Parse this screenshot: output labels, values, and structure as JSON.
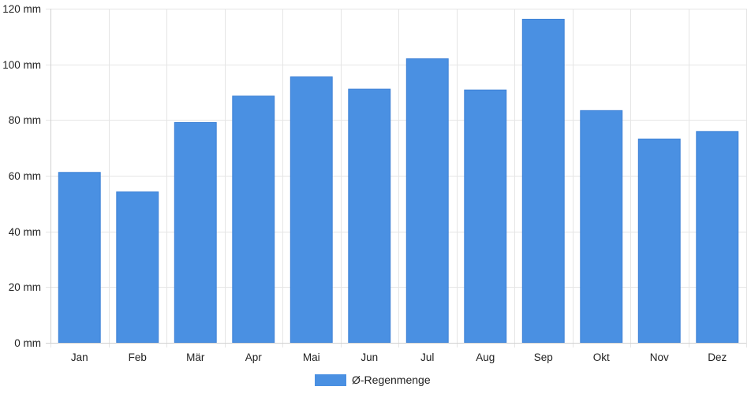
{
  "chart_data": {
    "type": "bar",
    "title": "",
    "xlabel": "",
    "ylabel": "",
    "unit": "mm",
    "categories": [
      "Jan",
      "Feb",
      "Mär",
      "Apr",
      "Mai",
      "Jun",
      "Jul",
      "Aug",
      "Sep",
      "Okt",
      "Nov",
      "Dez"
    ],
    "series": [
      {
        "name": "Ø-Regenmenge",
        "color": "#4a90e2",
        "values": [
          61.2,
          54.2,
          79.1,
          88.6,
          95.5,
          91.1,
          102,
          90.8,
          116.2,
          83.4,
          73.2,
          75.9
        ]
      }
    ],
    "ylim": [
      0,
      120
    ],
    "yticks": [
      {
        "value": 0,
        "label": "0 mm"
      },
      {
        "value": 20,
        "label": "20 mm"
      },
      {
        "value": 40,
        "label": "40 mm"
      },
      {
        "value": 60,
        "label": "60 mm"
      },
      {
        "value": 80,
        "label": "80 mm"
      },
      {
        "value": 100,
        "label": "100 mm"
      },
      {
        "value": 120,
        "label": "120 mm"
      }
    ],
    "grid": true,
    "legend_position": "bottom-center",
    "colors": {
      "grid": "#e5e5e5",
      "axis": "#d0d0d0",
      "text": "#222222"
    }
  }
}
